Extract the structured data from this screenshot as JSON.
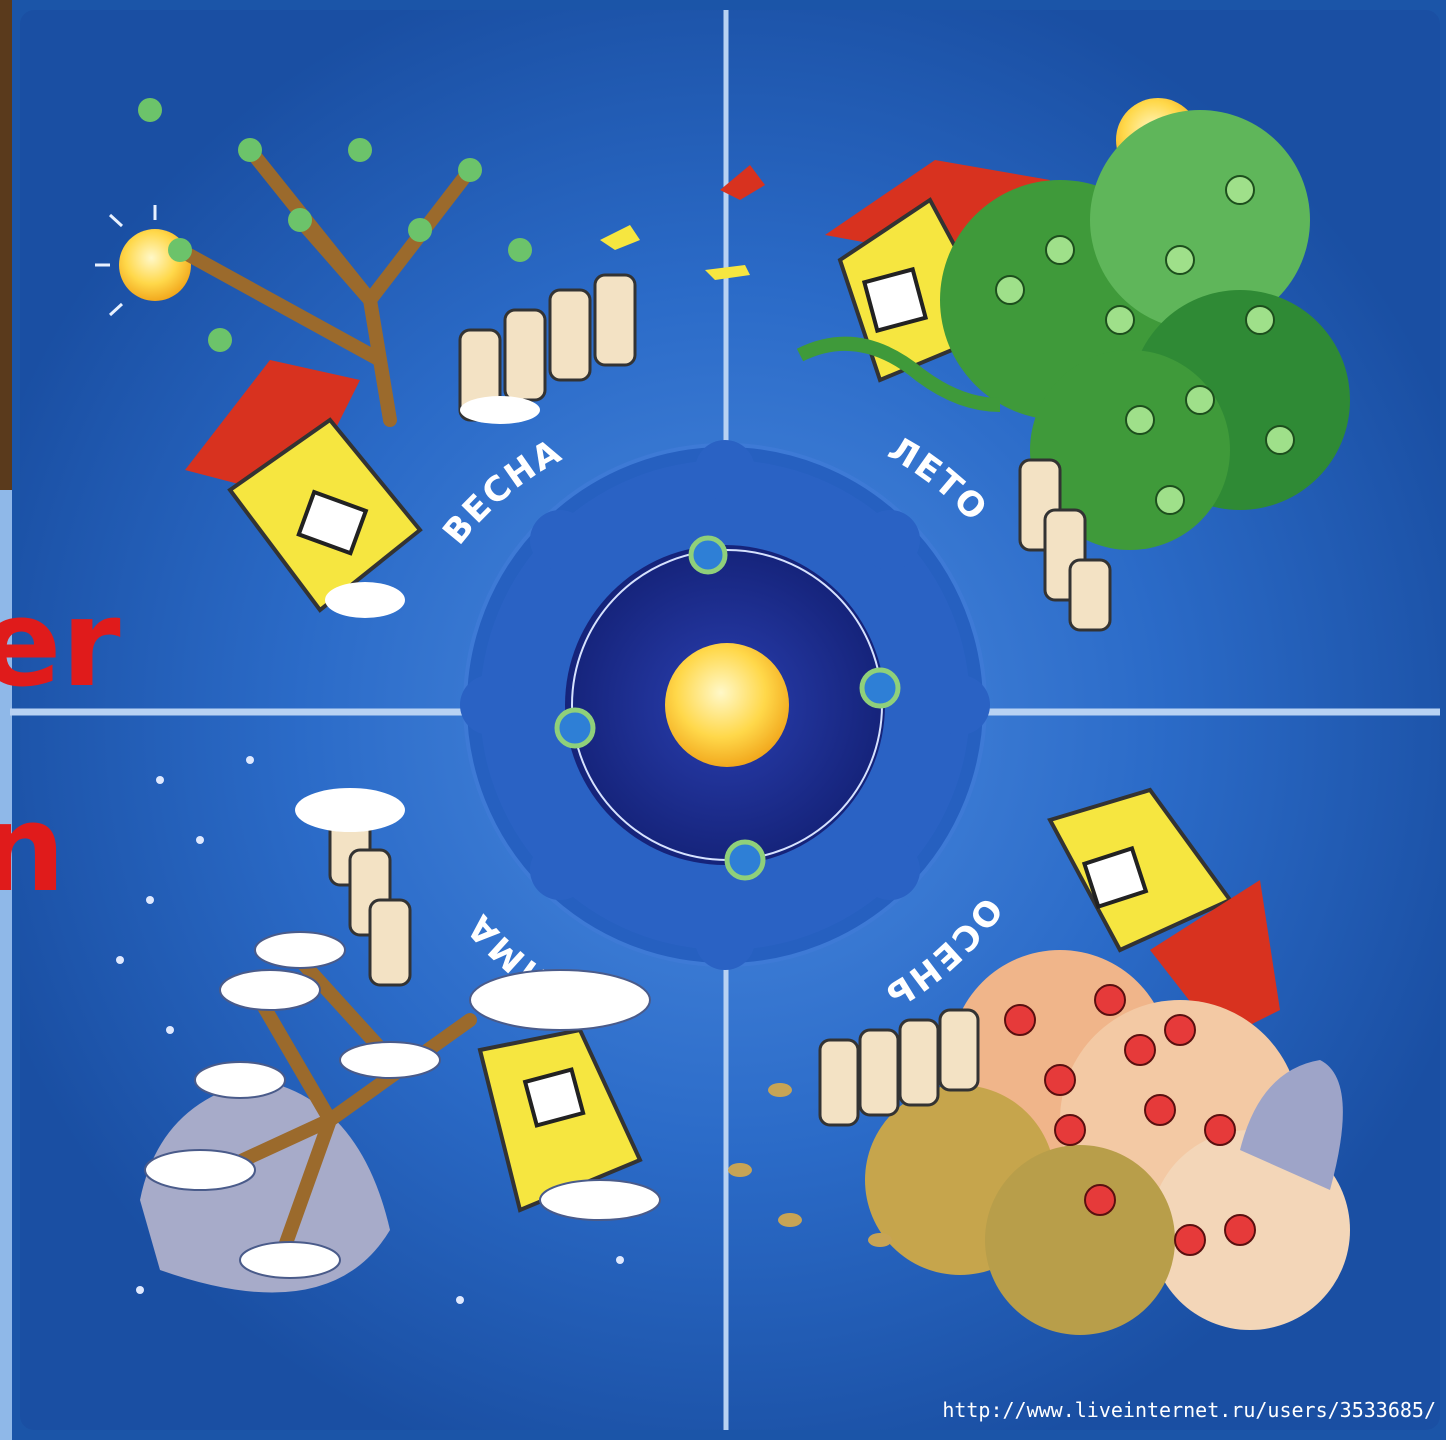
{
  "seasons": {
    "spring": "ВЕСНА",
    "summer": "ЛЕТО",
    "autumn": "ОСЕНЬ",
    "winter": "ЗИМА"
  },
  "left_fragment": {
    "line1": "er",
    "line2": "n"
  },
  "watermark_url": "http://www.liveinternet.ru/users/3533685/",
  "colors": {
    "board_blue": "#1d5cb0",
    "deep_blue": "#1a2f8c",
    "sun_yellow": "#ffd84a",
    "house_yellow": "#f6e640",
    "roof_red": "#d8321f",
    "leaf_green": "#3f9a3a",
    "autumn_orange": "#f0b58a",
    "snow_white": "#f4f7ff"
  }
}
